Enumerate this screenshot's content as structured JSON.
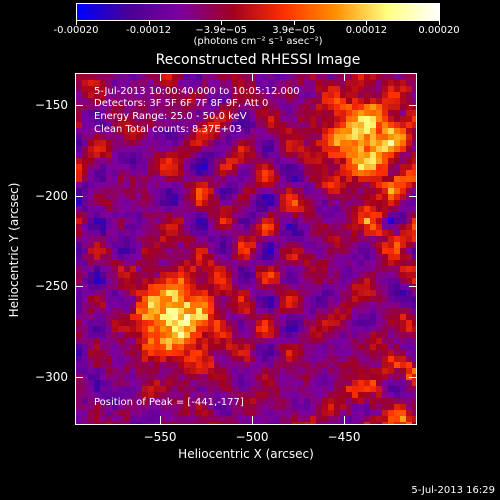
{
  "colorbar": {
    "tick_labels": [
      "-0.00020",
      "-0.00012",
      "−3.9e−05",
      "3.9e−05",
      "0.00012",
      "0.00020"
    ],
    "units": "(photons cm⁻² s⁻¹ asec⁻²)"
  },
  "title": "Reconstructed RHESSI Image",
  "info": {
    "time_range": "5-Jul-2013 10:00:40.000 to 10:05:12.000",
    "detectors": "Detectors: 3F 5F 6F 7F 8F 9F, Att 0",
    "energy_range": "Energy Range: 25.0 - 50.0 keV",
    "algorithm_counts": "Clean    Total counts: 8.37E+03",
    "peak_position": "Position of Peak = [-441,-177]"
  },
  "chart_data": {
    "type": "heatmap",
    "title": "Reconstructed RHESSI Image",
    "xlabel": "Heliocentric X (arcsec)",
    "ylabel": "Heliocentric Y (arcsec)",
    "x_ticks": [
      -550,
      -500,
      -450
    ],
    "y_ticks": [
      -150,
      -200,
      -250,
      -300
    ],
    "xlim": [
      -596,
      -409
    ],
    "ylim": [
      -324,
      -131
    ],
    "colorbar_range": [
      -0.0002,
      0.0002
    ],
    "colormap": [
      "#0000ff",
      "#4b0095",
      "#7d00a0",
      "#a00020",
      "#ff3000",
      "#ff9000",
      "#ffff80",
      "#ffffff"
    ],
    "peak": [
      -441,
      -177
    ],
    "features": [
      {
        "name": "north-east bright source",
        "x": -437,
        "y": -165,
        "intensity": 0.9
      },
      {
        "name": "south-west bright source",
        "x": -542,
        "y": -265,
        "intensity": 0.95
      }
    ]
  },
  "axes": {
    "x_tick_labels": [
      "−550",
      "−500",
      "−450"
    ],
    "y_tick_labels": [
      "−150",
      "−200",
      "−250",
      "−300"
    ],
    "x_title": "Heliocentric X (arcsec)",
    "y_title": "Heliocentric Y (arcsec)"
  },
  "footer": {
    "date": "5-Jul-2013 16:29"
  }
}
